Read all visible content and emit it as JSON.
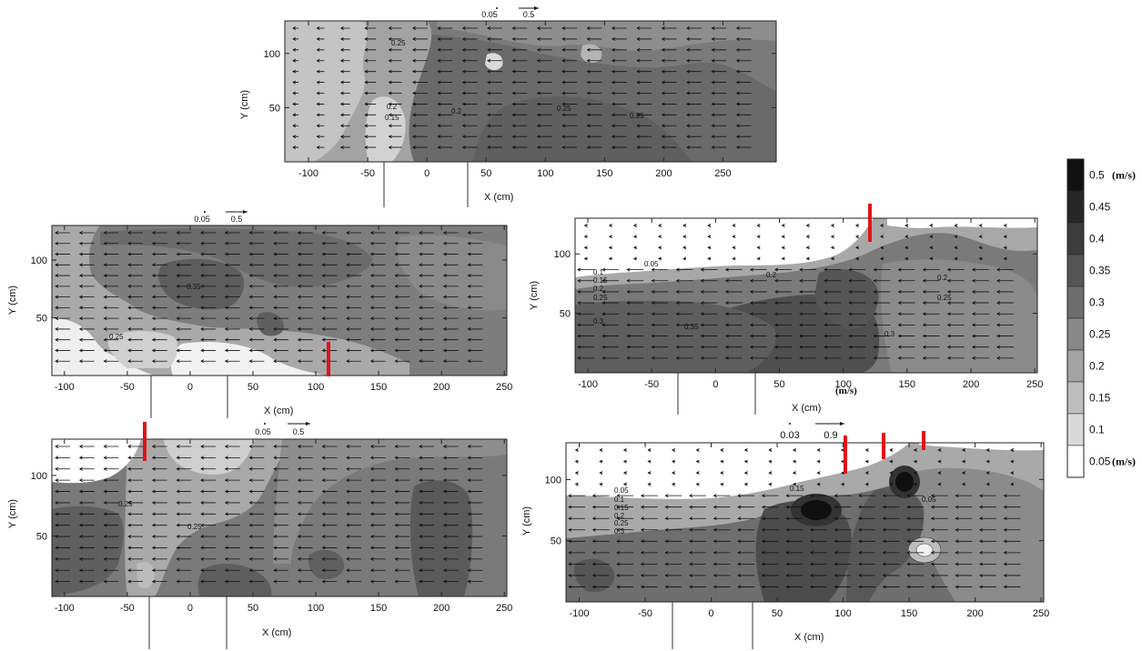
{
  "panels": [
    {
      "id": "top",
      "xlabel": "X (cm)",
      "ylabel": "Y (cm)",
      "xticks": [
        "-100",
        "-50",
        "0",
        "50",
        "100",
        "150",
        "200",
        "250"
      ],
      "yticks": [
        "50",
        "100"
      ],
      "scale": [
        "0.05",
        "0.5"
      ],
      "contours": [
        {
          "label": "0.25"
        },
        {
          "label": "0.2"
        },
        {
          "label": "0.15"
        },
        {
          "label": "0.2"
        },
        {
          "label": "0.25"
        },
        {
          "label": "0.25"
        }
      ]
    },
    {
      "id": "mid-left",
      "xlabel": "X (cm)",
      "ylabel": "Y (cm)",
      "xticks": [
        "-100",
        "-50",
        "0",
        "50",
        "100",
        "150",
        "200",
        "250"
      ],
      "yticks": [
        "50",
        "100"
      ],
      "scale": [
        "0.05",
        "0.5"
      ],
      "contours": [
        {
          "label": "0.35"
        },
        {
          "label": "0.25"
        }
      ]
    },
    {
      "id": "mid-right",
      "xlabel": "X (cm)",
      "unit_label": "(m/s)",
      "ylabel": "Y (cm)",
      "xticks": [
        "-100",
        "-50",
        "0",
        "50",
        "100",
        "150",
        "200",
        "250"
      ],
      "yticks": [
        "50",
        "100"
      ],
      "contours": [
        {
          "label": "0.05"
        },
        {
          "label": "0.1"
        },
        {
          "label": "0.15"
        },
        {
          "label": "0.2"
        },
        {
          "label": "0.25"
        },
        {
          "label": "0.3"
        },
        {
          "label": "0.35"
        },
        {
          "label": "0.2"
        },
        {
          "label": "0.2"
        },
        {
          "label": "0.25"
        },
        {
          "label": "0.3"
        }
      ]
    },
    {
      "id": "bottom-left",
      "xlabel": "X (cm)",
      "ylabel": "Y (cm)",
      "xticks": [
        "-100",
        "-50",
        "0",
        "50",
        "100",
        "150",
        "200",
        "250"
      ],
      "yticks": [
        "50",
        "100"
      ],
      "scale": [
        "0.05",
        "0.5"
      ],
      "contours": [
        {
          "label": "0.25"
        },
        {
          "label": "0.25"
        }
      ]
    },
    {
      "id": "bottom-right",
      "xlabel": "X (cm)",
      "ylabel": "Y (cm)",
      "xticks": [
        "-100",
        "-50",
        "0",
        "50",
        "100",
        "150",
        "200",
        "250"
      ],
      "yticks": [
        "50",
        "100"
      ],
      "scale": [
        "0.03",
        "0.9"
      ],
      "contours": [
        {
          "label": "0.05"
        },
        {
          "label": "0.1"
        },
        {
          "label": "0.15"
        },
        {
          "label": "0.2"
        },
        {
          "label": "0.25"
        },
        {
          "label": "0.3"
        },
        {
          "label": "0.15"
        },
        {
          "label": "0.05"
        }
      ]
    }
  ],
  "colorbar": {
    "levels": [
      "0.5",
      "0.45",
      "0.4",
      "0.35",
      "0.3",
      "0.25",
      "0.2",
      "0.15",
      "0.1",
      "0.05"
    ],
    "unit": "(m/s)",
    "colors": [
      "#111111",
      "#262626",
      "#3c3c3c",
      "#555555",
      "#6d6d6d",
      "#888888",
      "#a3a3a3",
      "#bebebe",
      "#d9d9d9",
      "#ffffff"
    ]
  }
}
